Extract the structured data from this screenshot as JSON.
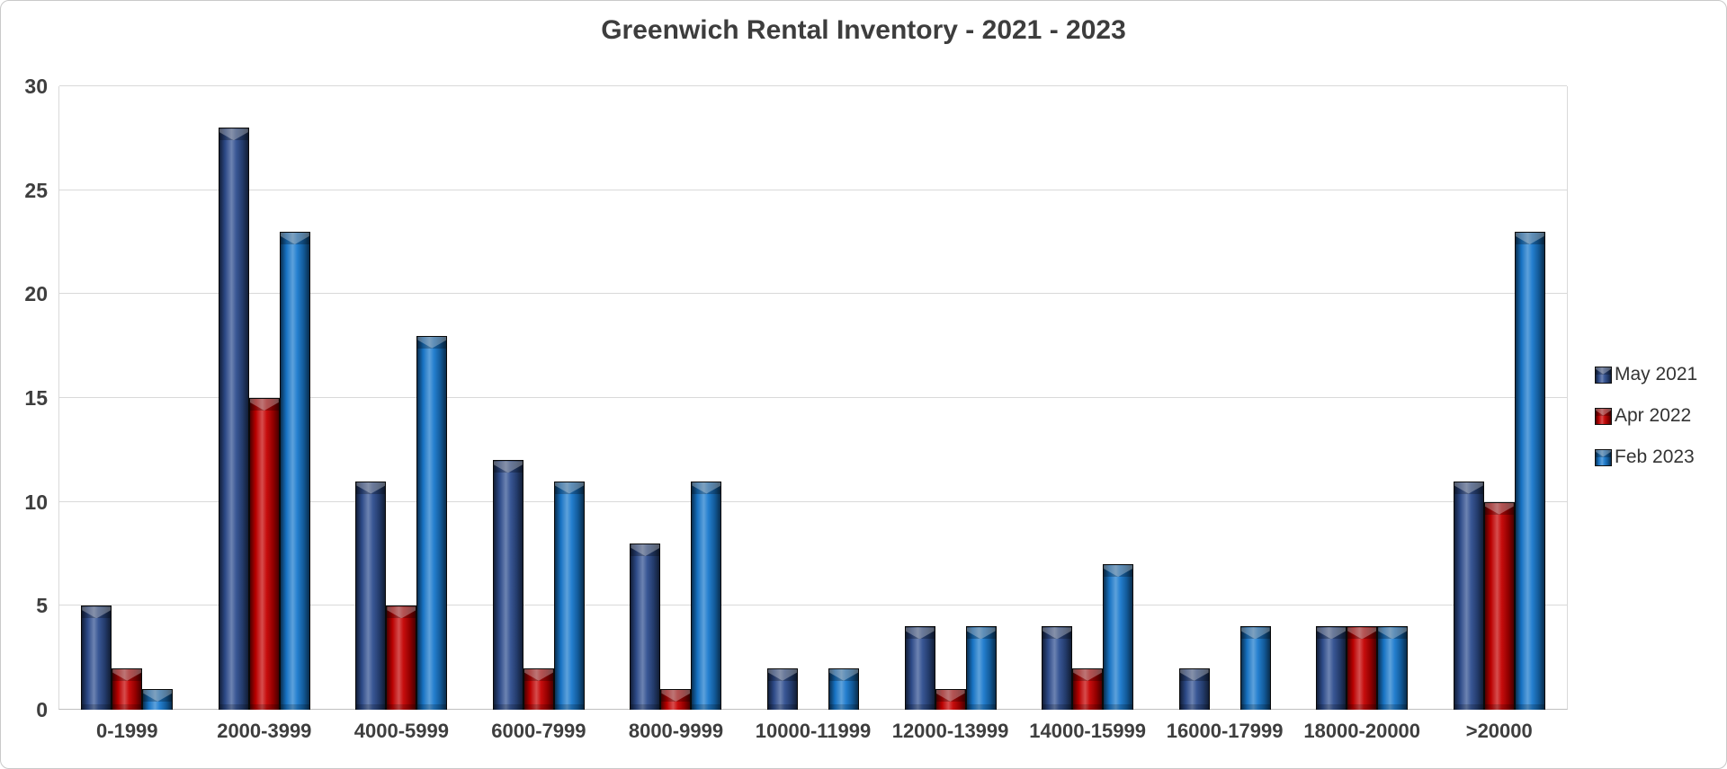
{
  "window": {
    "background": "#ffffff",
    "frame_border": "#c9c9c9"
  },
  "chart_data": {
    "type": "bar",
    "title": "Greenwich Rental Inventory - 2021 - 2023",
    "categories": [
      "0-1999",
      "2000-3999",
      "4000-5999",
      "6000-7999",
      "8000-9999",
      "10000-11999",
      "12000-13999",
      "14000-15999",
      "16000-17999",
      "18000-20000",
      ">20000"
    ],
    "series": [
      {
        "name": "May 2021",
        "color": "#2f4e8f",
        "values": [
          5,
          28,
          11,
          12,
          8,
          2,
          4,
          4,
          2,
          4,
          11
        ]
      },
      {
        "name": "Apr 2022",
        "color": "#c40000",
        "values": [
          2,
          15,
          5,
          2,
          1,
          0,
          1,
          2,
          0,
          4,
          10
        ]
      },
      {
        "name": "Feb 2023",
        "color": "#1878cc",
        "values": [
          1,
          23,
          18,
          11,
          11,
          2,
          4,
          7,
          4,
          4,
          23
        ]
      }
    ],
    "xlabel": "",
    "ylabel": "",
    "ylim": [
      0,
      30
    ],
    "yticks": [
      0,
      5,
      10,
      15,
      20,
      25,
      30
    ],
    "grid": true,
    "legend_position": "right"
  },
  "colors": {
    "title_text": "#3d3d3d",
    "axis_text": "#3e3e3e",
    "gridline": "#d9d9d9",
    "axis_line": "#bfbfbf"
  }
}
